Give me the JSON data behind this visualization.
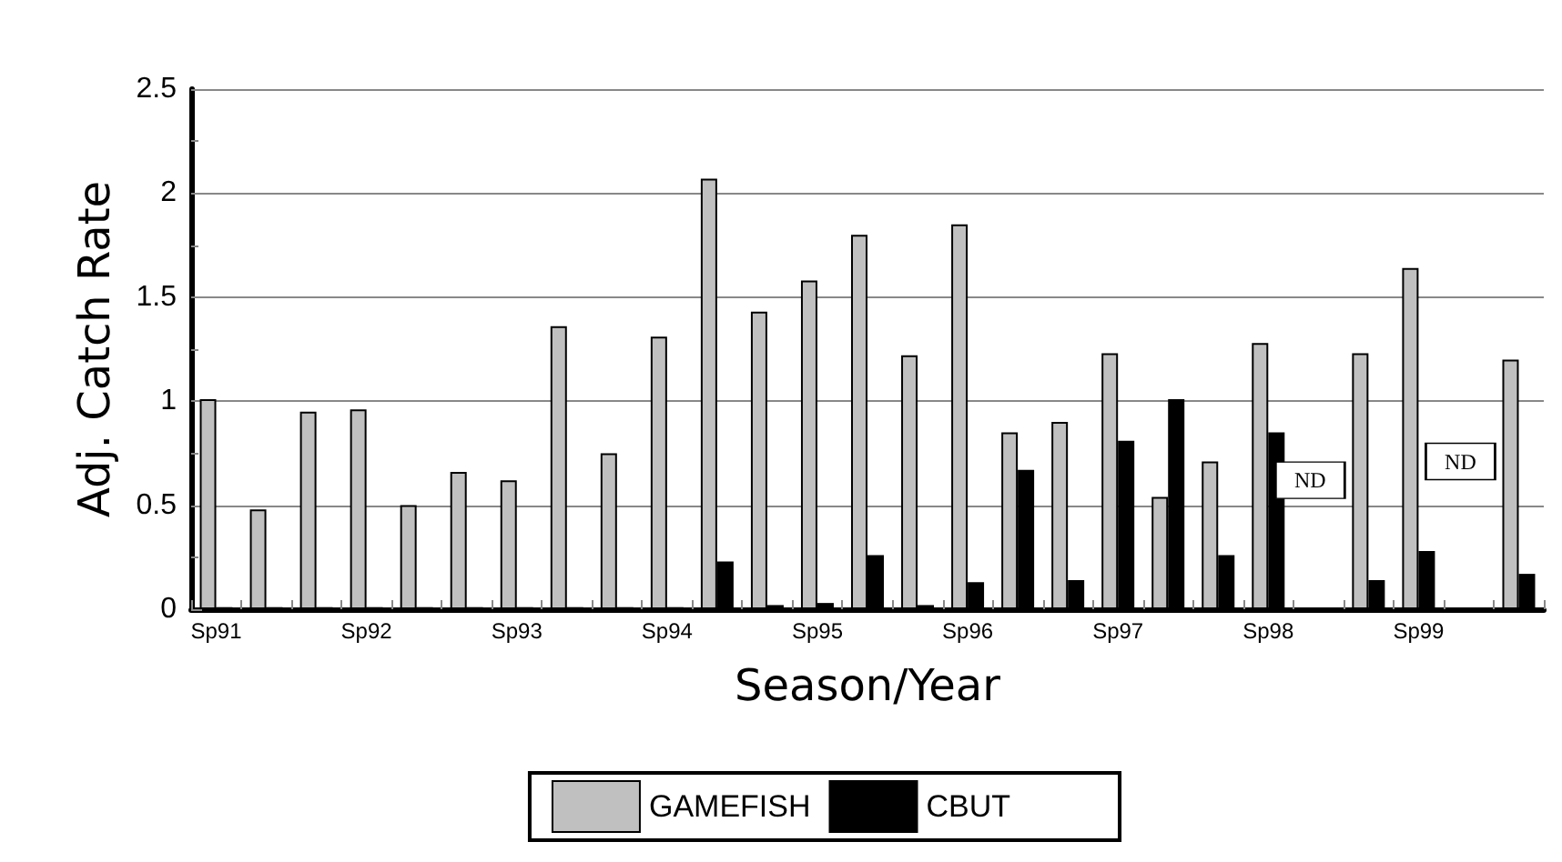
{
  "chart_data": {
    "type": "bar",
    "xlabel": "Season/Year",
    "ylabel": "Adj. Catch Rate",
    "categories": [
      "Sp91",
      null,
      null,
      "Sp92",
      null,
      null,
      "Sp93",
      null,
      null,
      "Sp94",
      null,
      null,
      "Sp95",
      null,
      null,
      "Sp96",
      null,
      null,
      "Sp97",
      null,
      null,
      "Sp98",
      null,
      null,
      "Sp99",
      null,
      null
    ],
    "series": [
      {
        "name": "GAMEFISH",
        "color": "#c0c0c0",
        "values": [
          1.01,
          0.48,
          0.95,
          0.96,
          0.5,
          0.66,
          0.62,
          1.36,
          0.75,
          1.31,
          2.07,
          1.43,
          1.58,
          1.8,
          1.22,
          1.85,
          0.85,
          0.9,
          1.23,
          0.54,
          0.71,
          1.28,
          null,
          1.23,
          1.64,
          null,
          1.2
        ]
      },
      {
        "name": "CBUT",
        "color": "#000000",
        "values": [
          0.01,
          0.01,
          0.01,
          0.01,
          0.01,
          0.01,
          0.01,
          0.01,
          0.01,
          0.01,
          0.23,
          0.02,
          0.03,
          0.26,
          0.02,
          0.13,
          0.67,
          0.14,
          0.81,
          1.01,
          0.26,
          0.85,
          null,
          0.14,
          0.28,
          null,
          0.17
        ]
      }
    ],
    "annotations": [
      {
        "text": "ND",
        "y": 0.62
      },
      {
        "text": "ND",
        "y": 0.71
      }
    ],
    "ylim": [
      0,
      2.5
    ],
    "yticks": [
      0,
      0.5,
      1,
      1.5,
      2,
      2.5
    ],
    "grid": "y",
    "legend": "bottom"
  }
}
